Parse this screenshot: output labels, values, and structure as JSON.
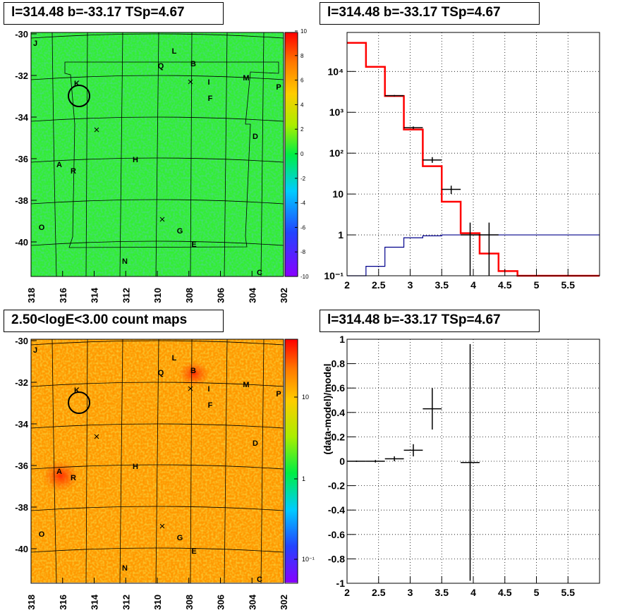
{
  "panels": {
    "tl_title": "l=314.48 b=-33.17 TSp=4.67",
    "tr_title": "l=314.48 b=-33.17 TSp=4.67",
    "bl_title": "2.50<logE<3.00 count maps",
    "br_title": "l=314.48 b=-33.17 TSp=4.67"
  },
  "maps": {
    "x_ticks": [
      "318",
      "316",
      "314",
      "312",
      "310",
      "308",
      "306",
      "304",
      "302"
    ],
    "y_ticks": [
      "-30",
      "-32",
      "-34",
      "-36",
      "-38",
      "-40"
    ],
    "sources": [
      {
        "label": "J"
      },
      {
        "label": "L"
      },
      {
        "label": "Q"
      },
      {
        "label": "B"
      },
      {
        "label": "I"
      },
      {
        "label": "M"
      },
      {
        "label": "P"
      },
      {
        "label": "K"
      },
      {
        "label": "F"
      },
      {
        "label": "D"
      },
      {
        "label": "A"
      },
      {
        "label": "R"
      },
      {
        "label": "H"
      },
      {
        "label": "O"
      },
      {
        "label": "G"
      },
      {
        "label": "E"
      },
      {
        "label": "N"
      },
      {
        "label": "C"
      }
    ],
    "residual_colorbar_ticks": [
      "10",
      "8",
      "6",
      "4",
      "2",
      "0",
      "-2",
      "-4",
      "-6",
      "-8",
      "-10"
    ],
    "count_colorbar_ticks": [
      "10",
      "1",
      "10⁻¹"
    ],
    "colors": {
      "residual_base": "#33ee33",
      "count_base": "#ff9900"
    }
  },
  "chart_data": [
    {
      "type": "line",
      "title": "l=314.48 b=-33.17 TSp=4.67",
      "yscale": "log",
      "xlim": [
        2,
        6.0
      ],
      "ylim": [
        0.1,
        90000
      ],
      "x_ticks": [
        "2",
        "2.5",
        "3",
        "3.5",
        "4",
        "4.5",
        "5",
        "5.5"
      ],
      "y_ticks": [
        "10⁻¹",
        "1",
        "10",
        "10²",
        "10³",
        "10⁴"
      ],
      "series": [
        {
          "style": "model-red-step",
          "color": "#ff0000",
          "edges": [
            2.0,
            2.3,
            2.6,
            2.9,
            3.2,
            3.5,
            3.8,
            4.1,
            4.4,
            4.7,
            5.0,
            5.3,
            5.6,
            6.0
          ],
          "values": [
            50000,
            13000,
            2500,
            380,
            48,
            6.5,
            1.1,
            0.35,
            0.13,
            0.1,
            0.1,
            0.1,
            0.1
          ]
        },
        {
          "style": "component-blue-step",
          "color": "#00008b",
          "edges": [
            2.0,
            2.3,
            2.6,
            2.9,
            3.2,
            3.5,
            3.8,
            4.1,
            4.4,
            4.7,
            5.0,
            5.3,
            5.6,
            6.0
          ],
          "values": [
            0.08,
            0.17,
            0.5,
            0.85,
            0.95,
            1.0,
            1.0,
            1.0,
            1.0,
            1.0,
            1.0,
            1.0,
            1.0
          ]
        },
        {
          "style": "data-points",
          "color": "#000000",
          "x": [
            2.75,
            3.05,
            3.35,
            3.65,
            3.95,
            4.25
          ],
          "xerr": [
            0.15,
            0.15,
            0.15,
            0.15,
            0.15,
            0.15
          ],
          "y": [
            2550,
            420,
            68,
            13,
            1.0,
            1.0
          ],
          "ylo": [
            2450,
            390,
            58,
            10,
            0.1,
            0.1
          ],
          "yhi": [
            2650,
            450,
            80,
            16,
            2.0,
            2.0
          ]
        }
      ]
    },
    {
      "type": "scatter",
      "title": "l=314.48 b=-33.17 TSp=4.67",
      "ylabel": "(data-model)/model",
      "xlim": [
        2,
        6.0
      ],
      "ylim": [
        -1,
        1
      ],
      "x_ticks": [
        "2",
        "2.5",
        "3",
        "3.5",
        "4",
        "4.5",
        "5",
        "5.5"
      ],
      "y_ticks": [
        "1",
        "0.8",
        "0.6",
        "0.4",
        "0.2",
        "0",
        "-0.2",
        "-0.4",
        "-0.6",
        "-0.8",
        "-1"
      ],
      "points": {
        "x": [
          2.15,
          2.45,
          2.75,
          3.05,
          3.35,
          3.95
        ],
        "xerr": [
          0.15,
          0.15,
          0.15,
          0.15,
          0.15,
          0.15
        ],
        "y": [
          0.0,
          0.0,
          0.02,
          0.09,
          0.43,
          -0.01
        ],
        "yerr": [
          0.005,
          0.01,
          0.02,
          0.05,
          0.17,
          0.97
        ]
      }
    }
  ]
}
